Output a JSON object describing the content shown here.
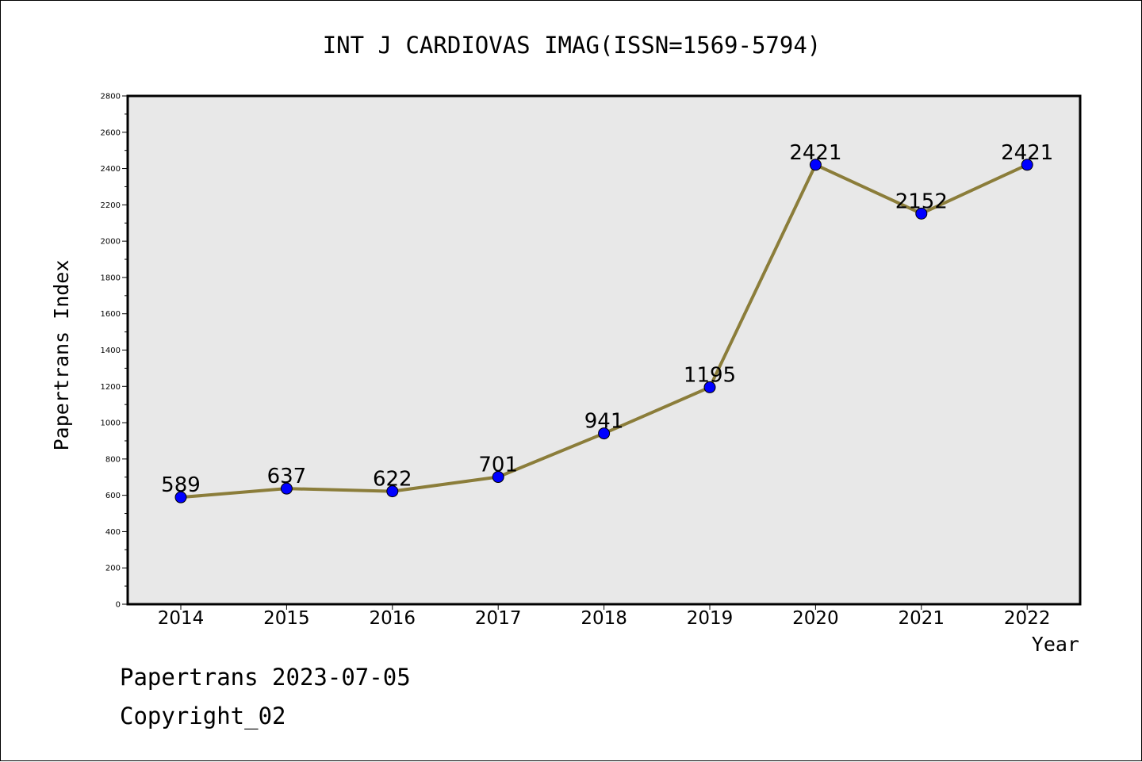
{
  "chart_data": {
    "type": "line",
    "title": "INT J CARDIOVAS IMAG(ISSN=1569-5794)",
    "xlabel": "Year",
    "ylabel": "Papertrans Index",
    "categories": [
      "2014",
      "2015",
      "2016",
      "2017",
      "2018",
      "2019",
      "2020",
      "2021",
      "2022"
    ],
    "values": [
      589,
      637,
      622,
      701,
      941,
      1195,
      2421,
      2152,
      2421
    ],
    "data_labels": [
      "589",
      "637",
      "622",
      "701",
      "941",
      "1195",
      "2421",
      "2152",
      "2421"
    ],
    "ylim": [
      0,
      2800
    ],
    "y_ticks": [
      "0",
      "200",
      "400",
      "600",
      "800",
      "1000",
      "1200",
      "1400",
      "1600",
      "1800",
      "2000",
      "2200",
      "2400",
      "2600",
      "2800"
    ],
    "grid": false,
    "legend": "none",
    "colors": {
      "line": "#8b7d3a",
      "marker": "#0000ff",
      "plot_background": "#e8e8e8"
    }
  },
  "footer": {
    "line1": "Papertrans 2023-07-05",
    "line2": "Copyright_02"
  }
}
